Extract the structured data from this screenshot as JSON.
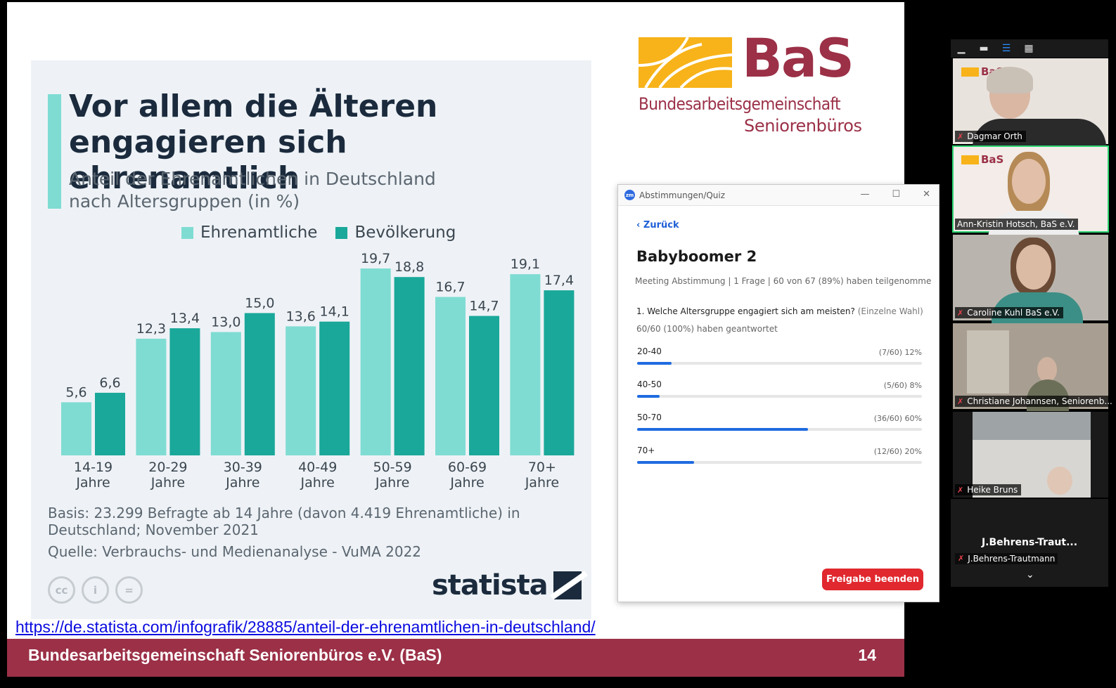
{
  "slide": {
    "infographic": {
      "title": "Vor allem die Älteren engagieren sich ehrenamtlich",
      "subtitle": "Anteil der Ehrenamtlichen in Deutschland nach Altersgruppen (in %)",
      "legend": [
        "Ehrenamtliche",
        "Bevölkerung"
      ],
      "basis": "Basis: 23.299 Befragte ab 14 Jahre (davon 4.419 Ehrenamtliche) in Deutschland; November 2021",
      "source": "Quelle: Verbrauchs- und Medienanalyse - VuMA 2022",
      "brand": "statista",
      "cc_icons": [
        "cc-icon",
        "by-icon",
        "nd-icon"
      ]
    },
    "logo": {
      "letters": "BaS",
      "line1": "Bundesarbeitsgemeinschaft",
      "line2": "Seniorenbüros"
    },
    "link": "https://de.statista.com/infografik/28885/anteil-der-ehrenamtlichen-in-deutschland/",
    "footer": {
      "org": "Bundesarbeitsgemeinschaft Seniorenbüros e.V. (BaS)",
      "page": "14"
    }
  },
  "chart_data": {
    "type": "bar",
    "title": "Vor allem die Älteren engagieren sich ehrenamtlich",
    "subtitle": "Anteil der Ehrenamtlichen in Deutschland nach Altersgruppen (in %)",
    "categories": [
      "14-19 Jahre",
      "20-29 Jahre",
      "30-39 Jahre",
      "40-49 Jahre",
      "50-59 Jahre",
      "60-69 Jahre",
      "70+ Jahre"
    ],
    "category_lines": [
      [
        "14-19",
        "Jahre"
      ],
      [
        "20-29",
        "Jahre"
      ],
      [
        "30-39",
        "Jahre"
      ],
      [
        "40-49",
        "Jahre"
      ],
      [
        "50-59",
        "Jahre"
      ],
      [
        "60-69",
        "Jahre"
      ],
      [
        "70+",
        "Jahre"
      ]
    ],
    "series": [
      {
        "name": "Ehrenamtliche",
        "values": [
          5.6,
          12.3,
          13.0,
          13.6,
          19.7,
          16.7,
          19.1
        ],
        "labels": [
          "5,6",
          "12,3",
          "13,0",
          "13,6",
          "19,7",
          "16,7",
          "19,1"
        ],
        "color": "#7fdcd3"
      },
      {
        "name": "Bevölkerung",
        "values": [
          6.6,
          13.4,
          15.0,
          14.1,
          18.8,
          14.7,
          17.4
        ],
        "labels": [
          "6,6",
          "13,4",
          "15,0",
          "14,1",
          "18,8",
          "14,7",
          "17,4"
        ],
        "color": "#1aa89a"
      }
    ],
    "ylim": [
      0,
      20
    ],
    "grid": false,
    "legend_position": "top"
  },
  "poll": {
    "window_title": "Abstimmungen/Quiz",
    "window_controls": [
      "—",
      "☐",
      "✕"
    ],
    "back_label": "Zurück",
    "name": "Babyboomer 2",
    "meta": "Meeting Abstimmung | 1 Frage | 60 von 67 (89%) haben teilgenomme",
    "question": "1. Welche Altersgruppe engagiert sich am meisten?",
    "question_hint": "(Einzelne Wahl)",
    "answered": "60/60 (100%) haben geantwortet",
    "options": [
      {
        "label": "20-40",
        "count": "(7/60) 12%",
        "share": 0.12
      },
      {
        "label": "40-50",
        "count": "(5/60) 8%",
        "share": 0.08
      },
      {
        "label": "50-70",
        "count": "(36/60) 60%",
        "share": 0.6
      },
      {
        "label": "70+",
        "count": "(12/60) 20%",
        "share": 0.2
      }
    ],
    "end_button": "Freigabe beenden",
    "accent_color": "#1f6be0",
    "danger_color": "#e0282e"
  },
  "gallery": {
    "participants": [
      {
        "name": "Dagmar Orth",
        "muted": true,
        "active": false
      },
      {
        "name": "Ann-Kristin Hotsch, BaS e.V.",
        "muted": false,
        "active": true
      },
      {
        "name": "Caroline Kuhl BaS e.V.",
        "muted": true,
        "active": false
      },
      {
        "name": "Christiane Johannsen, Seniorenb...",
        "muted": true,
        "active": false
      },
      {
        "name": "Heike  Bruns",
        "muted": true,
        "active": false
      }
    ],
    "no_video": {
      "display": "J.Behrens-Traut...",
      "tag": "J.Behrens-Trautmann",
      "muted": true
    },
    "active_speaker_color": "#2ed573"
  }
}
